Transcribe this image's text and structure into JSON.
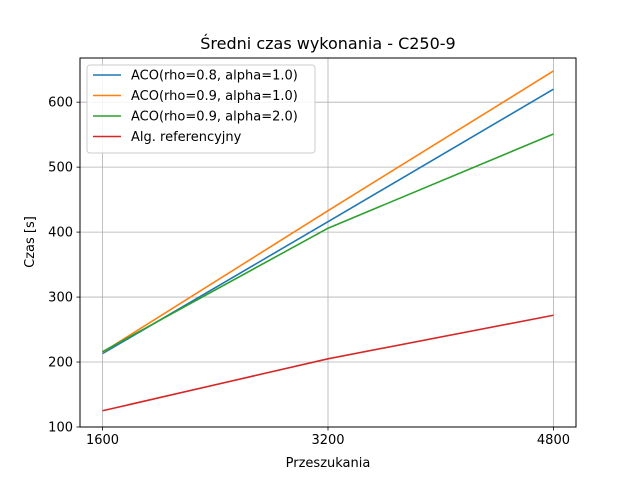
{
  "chart_data": {
    "type": "line",
    "title": "Średni czas wykonania - C250-9",
    "xlabel": "Przeszukania",
    "ylabel": "Czas [s]",
    "x": [
      1600,
      3200,
      4800
    ],
    "xticks": [
      "1600",
      "3200",
      "4800"
    ],
    "xlim": [
      1440,
      4960
    ],
    "yticks": [
      100,
      200,
      300,
      400,
      500,
      600
    ],
    "ylim": [
      100,
      668
    ],
    "grid": true,
    "legend_position": "top-left",
    "series": [
      {
        "name": "ACO(rho=0.8, alpha=1.0)",
        "color": "#1f77b4",
        "values": [
          213,
          416,
          620
        ]
      },
      {
        "name": "ACO(rho=0.9, alpha=1.0)",
        "color": "#ff7f0e",
        "values": [
          215,
          433,
          648
        ]
      },
      {
        "name": "ACO(rho=0.9, alpha=2.0)",
        "color": "#2ca02c",
        "values": [
          216,
          406,
          551
        ]
      },
      {
        "name": "Alg. referencyjny",
        "color": "#d62728",
        "values": [
          125,
          205,
          272
        ]
      }
    ]
  }
}
